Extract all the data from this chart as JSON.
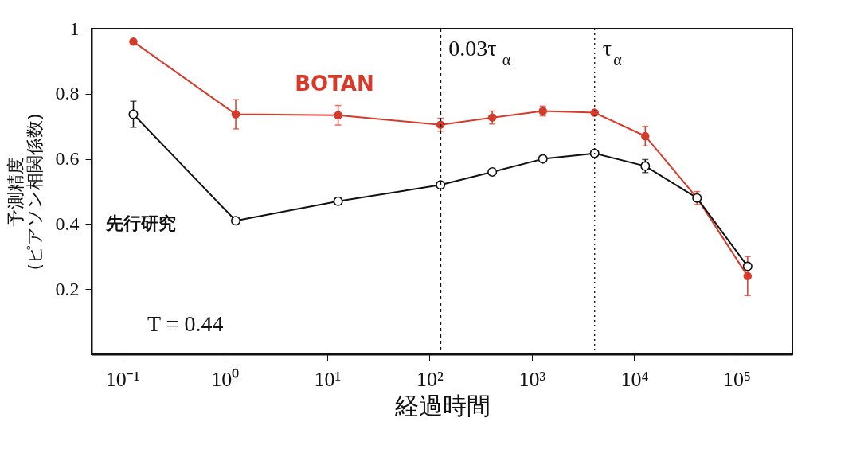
{
  "chart_data": {
    "type": "line",
    "xlabel": "経過時間",
    "ylabel": "予測精度\n(ピアソン相関係数)",
    "x": [
      0.128,
      1.28,
      12.8,
      128,
      410,
      1280,
      4100,
      12800,
      41000,
      128000
    ],
    "series": [
      {
        "name": "BOTAN",
        "color": "#d63a2a",
        "line_style": "solid",
        "values": [
          0.96,
          0.737,
          0.734,
          0.705,
          0.727,
          0.747,
          0.742,
          0.67,
          0.48,
          0.24
        ],
        "errors": [
          null,
          0.045,
          0.03,
          0.02,
          0.02,
          0.015,
          null,
          0.03,
          0.02,
          0.06
        ]
      },
      {
        "name": "先行研究",
        "color": "#111111",
        "line_style": "solid",
        "values": [
          0.737,
          0.41,
          0.47,
          0.52,
          0.56,
          0.6,
          0.617,
          0.578,
          0.48,
          0.27
        ],
        "errors": [
          0.04,
          null,
          null,
          null,
          null,
          null,
          null,
          0.02,
          null,
          null
        ]
      }
    ],
    "log": "x",
    "marker": "circle",
    "grid": false,
    "xlim": [
      0.05,
      350000
    ],
    "xticks": [
      {
        "value": 0.1,
        "label": "10⁻¹"
      },
      {
        "value": 1,
        "label": "10⁰"
      },
      {
        "value": 10,
        "label": "10¹"
      },
      {
        "value": 100,
        "label": "10²"
      },
      {
        "value": 1000,
        "label": "10³"
      },
      {
        "value": 10000,
        "label": "10⁴"
      },
      {
        "value": 100000,
        "label": "10⁵"
      }
    ],
    "ylim": [
      0,
      1
    ],
    "yticks": [
      0.2,
      0.4,
      0.6,
      0.8,
      1
    ],
    "ref_lines": [
      {
        "axis": "x",
        "value": 128,
        "label": "0.03τ$_{α}$",
        "line_style": "dashed"
      },
      {
        "axis": "x",
        "value": 4100,
        "label": "τ$_{α}$",
        "line_style": "dotted"
      }
    ],
    "annotations": [
      "T = 0.44"
    ]
  }
}
